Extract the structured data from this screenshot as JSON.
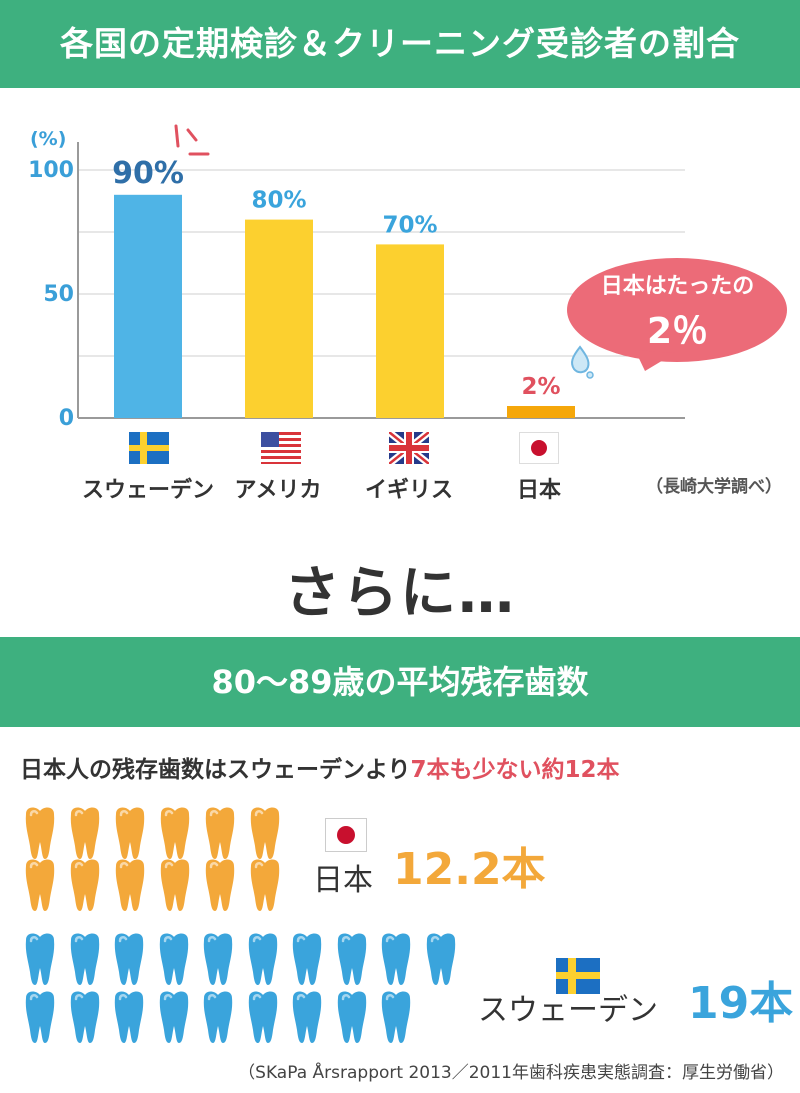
{
  "titles": {
    "top": "各国の定期検診＆クリーニング受診者の割合",
    "section2": "80〜89歳の平均残存歯数",
    "transition": "さらに…"
  },
  "chart_data": {
    "type": "bar",
    "title": "各国の定期検診＆クリーニング受診者の割合",
    "categories": [
      "スウェーデン",
      "アメリカ",
      "イギリス",
      "日本"
    ],
    "values": [
      90,
      80,
      70,
      2
    ],
    "value_labels": [
      "90%",
      "80%",
      "70%",
      "2%"
    ],
    "y_unit": "(%)",
    "yticks": [
      "100",
      "50",
      "0"
    ],
    "ylim": [
      0,
      100
    ],
    "colors": [
      "#4fb4e6",
      "#fcd02f",
      "#fcd02f",
      "#f5a70a"
    ],
    "value_label_colors": [
      "#2f6fa8",
      "#3aa4dc",
      "#3aa4dc",
      "#e0515f"
    ],
    "grid": true,
    "source": "（長崎大学調べ）"
  },
  "callout": {
    "line1": "日本はたったの",
    "line2": "2％"
  },
  "teeth_comparison": {
    "headline_normal": "日本人の残存歯数はスウェーデンより",
    "headline_highlight": "7本も少ない約12本",
    "japan": {
      "label": "日本",
      "value_text": "12.2本",
      "teeth": 12,
      "color": "#f3a83a"
    },
    "sweden": {
      "label": "スウェーデン",
      "value_text": "19本",
      "teeth": 19,
      "color": "#3aa4dc"
    },
    "source": "（SKaPa Årsrapport 2013／2011年歯科疾患実態調査：厚生労働省）"
  }
}
